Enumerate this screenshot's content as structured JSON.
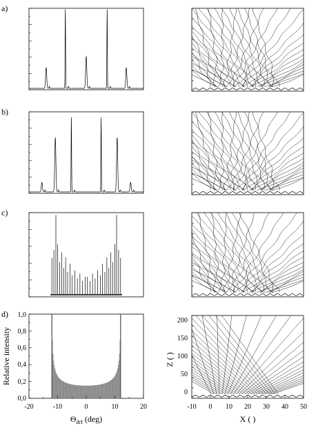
{
  "figure": {
    "panel_labels": [
      "a)",
      "b)",
      "c)",
      "d)"
    ]
  },
  "chart_data": [
    {
      "type": "line",
      "panel": "a)",
      "description_role": "diffraction intensity pattern",
      "peaks": [
        {
          "x": -14,
          "height": 0.26
        },
        {
          "x": -7.3,
          "height": 1.0
        },
        {
          "x": 0,
          "height": 0.4
        },
        {
          "x": 7.3,
          "height": 1.0
        },
        {
          "x": 14,
          "height": 0.26
        }
      ],
      "xlim": [
        -20,
        20
      ],
      "ylim": [
        0,
        1.0
      ]
    },
    {
      "type": "line",
      "panel": "b)",
      "peaks": [
        {
          "x": -15.5,
          "height": 0.12
        },
        {
          "x": -10.8,
          "height": 0.68
        },
        {
          "x": -5.2,
          "height": 0.93
        },
        {
          "x": 5.2,
          "height": 0.93
        },
        {
          "x": 10.8,
          "height": 0.68
        },
        {
          "x": 15.5,
          "height": 0.12
        }
      ],
      "xlim": [
        -20,
        20
      ],
      "ylim": [
        0,
        1.0
      ]
    },
    {
      "type": "bar",
      "panel": "c)",
      "peaks": [
        {
          "x": -12.0,
          "height": 0.45
        },
        {
          "x": -11.3,
          "height": 0.55
        },
        {
          "x": -10.6,
          "height": 0.98
        },
        {
          "x": -10.0,
          "height": 0.62
        },
        {
          "x": -9.3,
          "height": 0.4
        },
        {
          "x": -8.6,
          "height": 0.52
        },
        {
          "x": -7.9,
          "height": 0.33
        },
        {
          "x": -7.2,
          "height": 0.46
        },
        {
          "x": -6.5,
          "height": 0.28
        },
        {
          "x": -5.7,
          "height": 0.38
        },
        {
          "x": -4.9,
          "height": 0.24
        },
        {
          "x": -4.0,
          "height": 0.3
        },
        {
          "x": -3.1,
          "height": 0.2
        },
        {
          "x": -2.2,
          "height": 0.26
        },
        {
          "x": -1.3,
          "height": 0.17
        },
        {
          "x": -0.4,
          "height": 0.22
        },
        {
          "x": 0.4,
          "height": 0.22
        },
        {
          "x": 1.3,
          "height": 0.17
        },
        {
          "x": 2.2,
          "height": 0.26
        },
        {
          "x": 3.1,
          "height": 0.2
        },
        {
          "x": 4.0,
          "height": 0.3
        },
        {
          "x": 4.9,
          "height": 0.24
        },
        {
          "x": 5.7,
          "height": 0.38
        },
        {
          "x": 6.5,
          "height": 0.28
        },
        {
          "x": 7.2,
          "height": 0.46
        },
        {
          "x": 7.9,
          "height": 0.33
        },
        {
          "x": 8.6,
          "height": 0.52
        },
        {
          "x": 9.3,
          "height": 0.4
        },
        {
          "x": 10.0,
          "height": 0.62
        },
        {
          "x": 10.6,
          "height": 0.98
        },
        {
          "x": 11.3,
          "height": 0.55
        },
        {
          "x": 12.0,
          "height": 0.45
        }
      ],
      "xlim": [
        -20,
        20
      ],
      "ylim": [
        0,
        1.0
      ]
    },
    {
      "type": "area",
      "panel": "d)",
      "xlabel": "Θ",
      "xlabel_sub": "drf",
      "xlabel_unit": " (deg)",
      "ylabel": "Relative intensity",
      "xlim": [
        -20,
        20
      ],
      "ylim": [
        0,
        1.0
      ],
      "xticks": [
        "-20",
        "-10",
        "0",
        "10",
        "20"
      ],
      "xtick_values": [
        -20,
        -10,
        0,
        10,
        20
      ],
      "yticks": [
        "0,0",
        "0,2",
        "0,4",
        "0,6",
        "0,8",
        "1,0"
      ],
      "ytick_values": [
        0,
        0.2,
        0.4,
        0.6,
        0.8,
        1.0
      ],
      "edge": 12,
      "floor": 0.15
    },
    {
      "type": "line",
      "panel": "trajectories",
      "xlabel": "X (   )",
      "ylabel": "Z (   )",
      "xlim": [
        -10,
        50
      ],
      "ylim": [
        -15,
        215
      ],
      "xticks": [
        "-10",
        "0",
        "10",
        "20",
        "30",
        "40",
        "50"
      ],
      "xtick_values": [
        -10,
        0,
        10,
        20,
        30,
        40,
        50
      ],
      "yticks": [
        "0",
        "50",
        "100",
        "150",
        "200"
      ],
      "ytick_values": [
        0,
        50,
        100,
        150,
        200
      ],
      "slit_range": [
        0,
        36
      ]
    }
  ]
}
